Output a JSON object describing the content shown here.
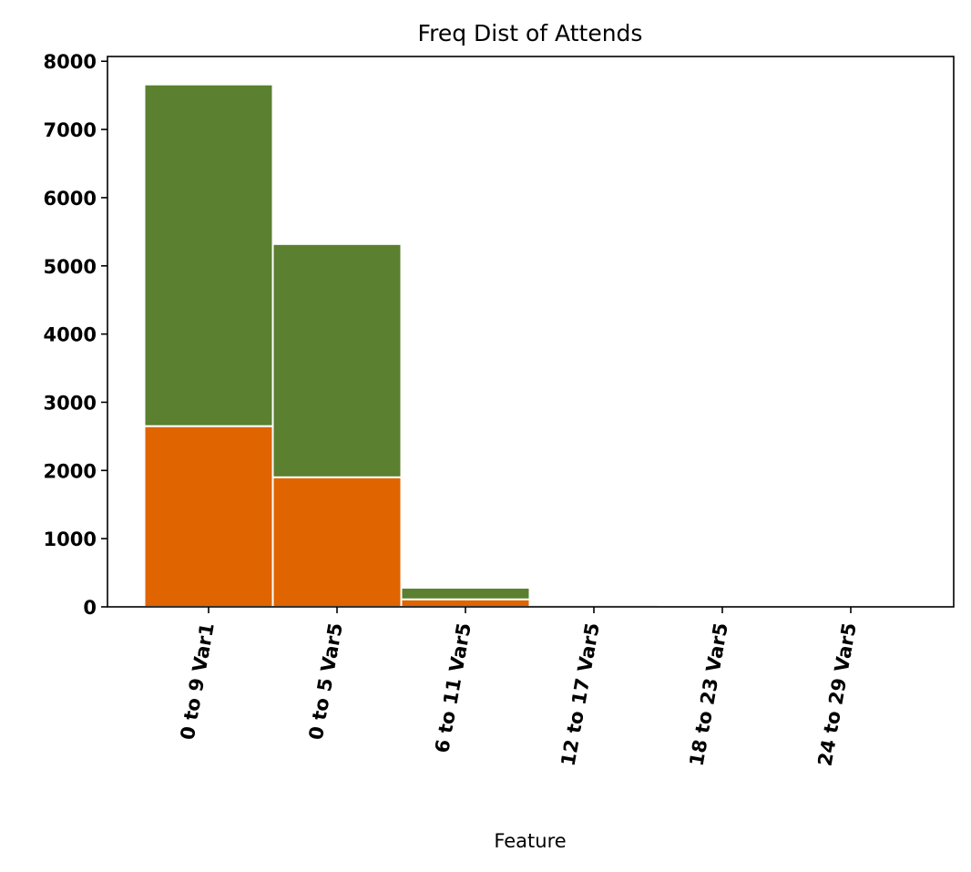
{
  "chart_data": {
    "type": "bar",
    "stacked": true,
    "title": "Freq Dist of Attends",
    "xlabel": "Feature",
    "ylabel": "",
    "ylim": [
      0,
      8070
    ],
    "yticks": [
      0,
      1000,
      2000,
      3000,
      4000,
      5000,
      6000,
      7000,
      8000
    ],
    "categories": [
      "0 to 9 Var1",
      "0 to 5 Var5",
      "6 to 11 Var5",
      "12 to 17 Var5",
      "18 to 23 Var5",
      "24 to 29 Var5"
    ],
    "series": [
      {
        "color": "#e06400",
        "values": [
          2650,
          1900,
          110,
          12,
          2,
          0
        ]
      },
      {
        "color": "#5a8030",
        "values": [
          5010,
          3420,
          170,
          28,
          5,
          0
        ]
      }
    ],
    "grid": false,
    "legend": "none",
    "bar_edge_color": "#ffffff"
  }
}
